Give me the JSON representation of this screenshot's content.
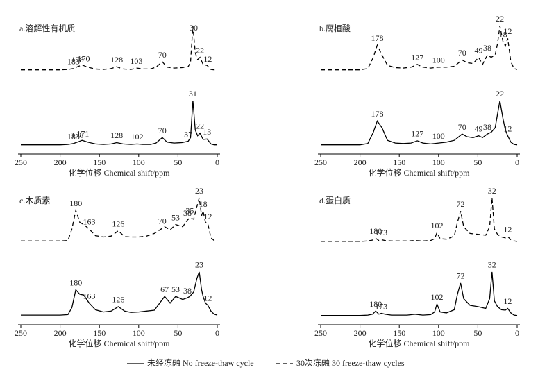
{
  "chart_data": [
    {
      "type": "line",
      "title": "a.溶解性有机质",
      "xlabel": "化学位移 Chemical shift/ppm",
      "xlim": [
        250,
        0
      ],
      "xticks": [
        250,
        200,
        150,
        100,
        50,
        0
      ],
      "x": [
        250,
        240,
        230,
        220,
        210,
        200,
        190,
        183,
        178,
        172,
        165,
        155,
        145,
        135,
        128,
        120,
        110,
        102,
        95,
        85,
        78,
        70,
        64,
        55,
        45,
        37,
        34,
        31,
        28,
        25,
        22,
        18,
        13,
        8,
        4,
        0
      ],
      "series": [
        {
          "style": "dashed",
          "color": "#000000",
          "values": [
            2,
            2,
            2,
            2,
            2,
            2,
            3,
            5,
            9,
            13,
            8,
            4,
            3,
            5,
            9,
            4,
            3,
            6,
            4,
            4,
            8,
            20,
            8,
            6,
            7,
            9,
            20,
            100,
            40,
            25,
            30,
            14,
            12,
            3,
            2,
            2
          ],
          "peaks": [
            183,
            178,
            170,
            128,
            103,
            70,
            30,
            22,
            12
          ]
        },
        {
          "style": "solid",
          "color": "#000000",
          "values": [
            2,
            2,
            2,
            2,
            2,
            2,
            3,
            5,
            8,
            12,
            8,
            4,
            3,
            4,
            7,
            4,
            3,
            4,
            3,
            3,
            6,
            18,
            8,
            6,
            7,
            10,
            18,
            100,
            35,
            22,
            28,
            14,
            15,
            4,
            2,
            2
          ],
          "peaks": [
            183,
            178,
            171,
            128,
            102,
            70,
            37,
            31,
            22,
            13
          ]
        }
      ]
    },
    {
      "type": "line",
      "title": "b.腐植酸",
      "xlabel": "化学位移 Chemical shift/ppm",
      "xlim": [
        250,
        0
      ],
      "xticks": [
        250,
        200,
        150,
        100,
        50,
        0
      ],
      "x": [
        250,
        240,
        230,
        220,
        210,
        200,
        190,
        183,
        178,
        172,
        165,
        155,
        145,
        135,
        127,
        120,
        110,
        100,
        90,
        80,
        70,
        64,
        56,
        49,
        44,
        38,
        33,
        28,
        25,
        22,
        18,
        15,
        12,
        8,
        4,
        0
      ],
      "series": [
        {
          "style": "dashed",
          "color": "#000000",
          "values": [
            2,
            2,
            2,
            2,
            2,
            2,
            5,
            30,
            57,
            35,
            12,
            7,
            6,
            8,
            14,
            8,
            6,
            8,
            8,
            10,
            24,
            18,
            16,
            30,
            14,
            35,
            30,
            35,
            60,
            100,
            65,
            55,
            72,
            20,
            5,
            3
          ],
          "peaks": [
            178,
            127,
            100,
            70,
            49,
            38,
            22,
            18,
            12
          ]
        },
        {
          "style": "solid",
          "color": "#000000",
          "values": [
            2,
            2,
            2,
            2,
            2,
            2,
            5,
            30,
            55,
            40,
            12,
            6,
            5,
            6,
            11,
            6,
            4,
            6,
            8,
            12,
            26,
            20,
            18,
            22,
            18,
            26,
            30,
            40,
            70,
            100,
            60,
            35,
            22,
            8,
            3,
            2
          ],
          "peaks": [
            178,
            127,
            100,
            70,
            49,
            38,
            22,
            12
          ]
        }
      ]
    },
    {
      "type": "line",
      "title": "c.木质素",
      "xlabel": "化学位移 Chemical shift/ppm",
      "xlim": [
        250,
        0
      ],
      "xticks": [
        250,
        200,
        150,
        100,
        50,
        0
      ],
      "x": [
        250,
        240,
        230,
        220,
        210,
        200,
        190,
        185,
        180,
        175,
        170,
        163,
        155,
        145,
        135,
        126,
        118,
        110,
        100,
        90,
        80,
        67,
        60,
        53,
        44,
        38,
        35,
        30,
        26,
        23,
        20,
        18,
        15,
        12,
        8,
        4,
        0
      ],
      "series": [
        {
          "style": "dashed",
          "color": "#000000",
          "values": [
            3,
            3,
            3,
            3,
            3,
            3,
            4,
            30,
            72,
            45,
            40,
            30,
            15,
            12,
            14,
            26,
            13,
            12,
            12,
            14,
            20,
            35,
            28,
            40,
            35,
            50,
            55,
            52,
            80,
            100,
            60,
            70,
            45,
            42,
            10,
            4,
            3
          ],
          "peaks": [
            180,
            163,
            126,
            70,
            53,
            38,
            35,
            23,
            18,
            12
          ]
        },
        {
          "style": "solid",
          "color": "#000000",
          "values": [
            3,
            3,
            3,
            3,
            3,
            3,
            4,
            20,
            60,
            50,
            48,
            30,
            15,
            10,
            12,
            22,
            12,
            9,
            10,
            12,
            14,
            45,
            30,
            45,
            38,
            42,
            45,
            55,
            85,
            100,
            60,
            45,
            30,
            25,
            12,
            5,
            3
          ],
          "peaks": [
            180,
            163,
            126,
            67,
            53,
            38,
            23,
            12
          ]
        }
      ]
    },
    {
      "type": "line",
      "title": "d.蛋白质",
      "xlabel": "化学位移 Chemical shift/ppm",
      "xlim": [
        250,
        0
      ],
      "xticks": [
        250,
        200,
        150,
        100,
        50,
        0
      ],
      "x": [
        250,
        240,
        230,
        220,
        210,
        200,
        190,
        184,
        180,
        176,
        173,
        168,
        160,
        150,
        140,
        130,
        120,
        110,
        105,
        102,
        98,
        90,
        80,
        76,
        72,
        68,
        60,
        50,
        40,
        35,
        32,
        29,
        25,
        20,
        15,
        12,
        8,
        4,
        0
      ],
      "series": [
        {
          "style": "dashed",
          "color": "#000000",
          "values": [
            2,
            2,
            2,
            2,
            2,
            2,
            3,
            5,
            9,
            4,
            6,
            4,
            3,
            3,
            3,
            4,
            3,
            4,
            8,
            22,
            8,
            7,
            14,
            45,
            70,
            35,
            20,
            18,
            16,
            35,
            100,
            30,
            18,
            12,
            10,
            13,
            6,
            3,
            2
          ],
          "peaks": [
            180,
            173,
            102,
            72,
            32,
            12
          ]
        },
        {
          "style": "solid",
          "color": "#000000",
          "values": [
            2,
            2,
            2,
            2,
            2,
            2,
            3,
            5,
            12,
            5,
            7,
            5,
            3,
            3,
            3,
            5,
            3,
            4,
            10,
            28,
            10,
            8,
            15,
            50,
            75,
            40,
            25,
            22,
            18,
            40,
            100,
            35,
            22,
            15,
            14,
            18,
            8,
            3,
            2
          ],
          "peaks": [
            180,
            173,
            102,
            72,
            32,
            12
          ]
        }
      ]
    }
  ],
  "legend": {
    "series": [
      {
        "name": "未经冻融 No freeze-thaw cycle",
        "style": "solid",
        "color": "#000000"
      },
      {
        "name": "30次冻融 30 freeze-thaw cycles",
        "style": "dashed",
        "color": "#000000"
      }
    ]
  }
}
